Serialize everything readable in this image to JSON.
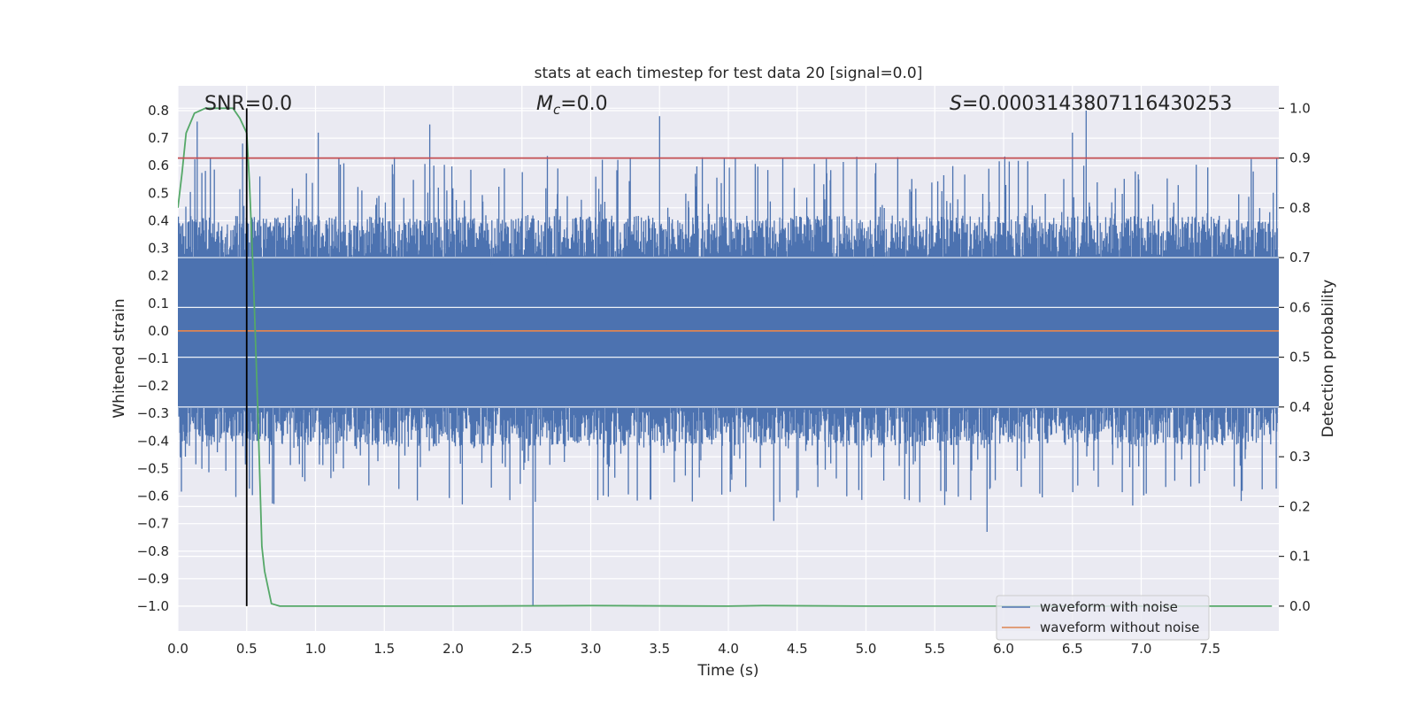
{
  "chart_data": {
    "type": "line",
    "title": "stats at each timestep for test data 20 [signal=0.0]",
    "xlabel": "Time (s)",
    "ylabel_left": "Whitened strain",
    "ylabel_right": "Detection probability",
    "xlim": [
      0.0,
      8.0
    ],
    "ylim_left": [
      -1.09,
      0.89
    ],
    "ylim_right": [
      -0.05,
      1.045
    ],
    "xticks": [
      "0.0",
      "0.5",
      "1.0",
      "1.5",
      "2.0",
      "2.5",
      "3.0",
      "3.5",
      "4.0",
      "4.5",
      "5.0",
      "5.5",
      "6.0",
      "6.5",
      "7.0",
      "7.5"
    ],
    "yticks_left": [
      "0.8",
      "0.7",
      "0.6",
      "0.5",
      "0.4",
      "0.3",
      "0.2",
      "0.1",
      "0.0",
      "−0.1",
      "−0.2",
      "−0.3",
      "−0.4",
      "−0.5",
      "−0.6",
      "−0.7",
      "−0.8",
      "−0.9",
      "−1.0"
    ],
    "yticks_right": [
      "1.0",
      "0.9",
      "0.8",
      "0.7",
      "0.6",
      "0.5",
      "0.4",
      "0.3",
      "0.2",
      "0.1",
      "0.0"
    ],
    "grid": true,
    "legend_position": "bottom-right",
    "annotations": {
      "snr": "SNR=0.0",
      "mc_symbol": "M",
      "mc_sub": "c",
      "mc_value": "=0.0",
      "s_symbol": "S",
      "s_value": "=0.0003143807116430253"
    },
    "noise_envelope": {
      "typical_max": 0.42,
      "typical_min": -0.42,
      "peaks": [
        {
          "x": 0.14,
          "y": 0.76
        },
        {
          "x": 0.47,
          "y": 0.68
        },
        {
          "x": 1.02,
          "y": 0.72
        },
        {
          "x": 1.83,
          "y": 0.75
        },
        {
          "x": 3.5,
          "y": 0.78
        },
        {
          "x": 6.6,
          "y": 0.8
        },
        {
          "x": 6.5,
          "y": 0.72
        },
        {
          "x": 2.58,
          "y": -1.0
        },
        {
          "x": 5.88,
          "y": -0.73
        },
        {
          "x": 4.33,
          "y": -0.69
        }
      ]
    },
    "series": [
      {
        "name": "waveform with noise",
        "color": "#4c72b0",
        "axis": "left"
      },
      {
        "name": "waveform without noise",
        "color": "#dd8452",
        "axis": "left",
        "x": [
          0.0,
          8.0
        ],
        "y": [
          0.0,
          0.0
        ]
      },
      {
        "color": "#55a868",
        "axis": "right",
        "x": [
          0.0,
          0.03,
          0.06,
          0.12,
          0.2,
          0.3,
          0.4,
          0.45,
          0.5,
          0.52,
          0.55,
          0.58,
          0.61,
          0.63,
          0.68,
          0.74,
          1.0,
          2.0,
          3.0,
          4.0,
          4.25,
          5.0,
          6.0,
          7.0,
          7.95
        ],
        "y": [
          0.8,
          0.87,
          0.95,
          0.99,
          1.0,
          1.0,
          1.0,
          0.98,
          0.95,
          0.85,
          0.65,
          0.4,
          0.12,
          0.07,
          0.005,
          0.0,
          0.0,
          0.0,
          0.001,
          0.0,
          0.001,
          0.0,
          0.0,
          0.0,
          0.0
        ]
      },
      {
        "color": "#c44e52",
        "axis": "right",
        "x": [
          0.0,
          8.0
        ],
        "y": [
          0.9,
          0.9
        ]
      }
    ],
    "marker_line": {
      "x": 0.5,
      "color": "#000000"
    }
  }
}
